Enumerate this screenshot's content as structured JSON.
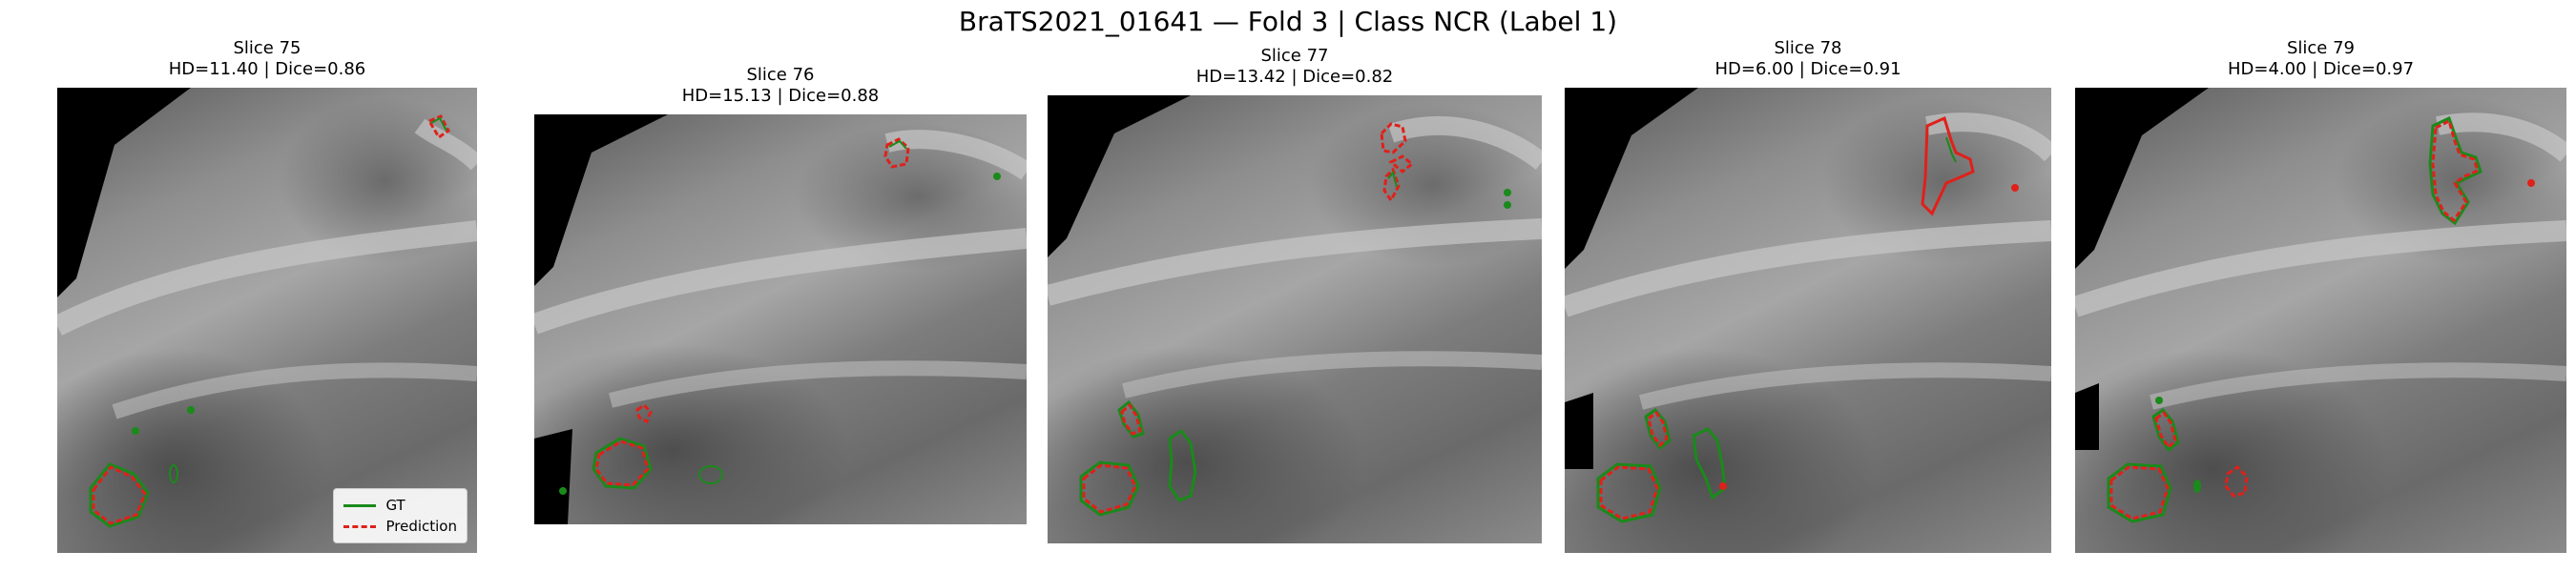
{
  "figure": {
    "title": "BraTS2021_01641 — Fold 3 | Class NCR (Label 1)"
  },
  "colors": {
    "gt": "#1a8a1a",
    "prediction": "#e0201a",
    "background": "#000000"
  },
  "legend": {
    "gt_label": "GT",
    "prediction_label": "Prediction"
  },
  "panels": [
    {
      "slice": "Slice 75",
      "metrics": "HD=11.40 | Dice=0.86"
    },
    {
      "slice": "Slice 76",
      "metrics": "HD=15.13 | Dice=0.88"
    },
    {
      "slice": "Slice 77",
      "metrics": "HD=13.42 | Dice=0.82"
    },
    {
      "slice": "Slice 78",
      "metrics": "HD=6.00 | Dice=0.91"
    },
    {
      "slice": "Slice 79",
      "metrics": "HD=4.00 | Dice=0.97"
    }
  ]
}
